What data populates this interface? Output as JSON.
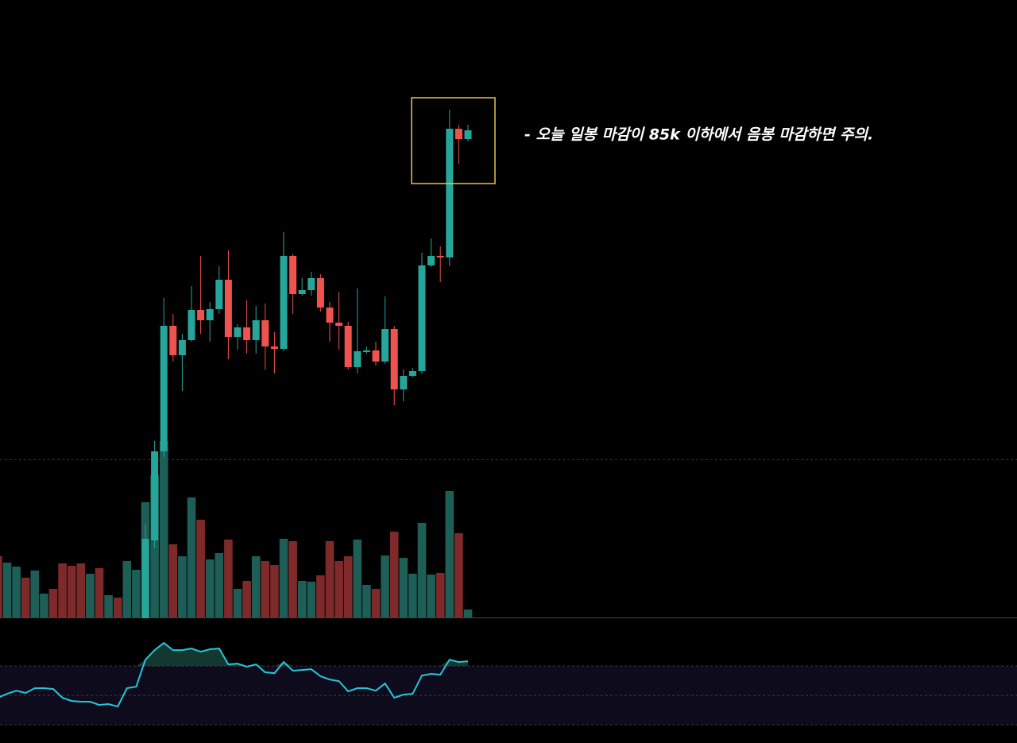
{
  "chart_data": [
    {
      "type": "candlestick",
      "annotation": "- 오늘 일봉 마감이 85k 이하에서 음봉 마감하면 주의.",
      "up_color": "#26a69a",
      "down_color": "#ef5350",
      "ylim": [
        0,
        800
      ],
      "open": [
        22,
        120,
        232,
        390,
        353,
        372,
        410,
        397,
        411,
        448,
        376,
        388,
        372,
        397,
        364,
        361,
        478,
        430,
        435,
        450,
        413,
        394,
        390,
        338,
        358,
        359,
        345,
        386,
        310,
        327,
        333,
        466,
        478,
        476,
        638,
        625
      ],
      "high": [
        140,
        245,
        425,
        405,
        380,
        440,
        478,
        420,
        465,
        485,
        392,
        422,
        415,
        418,
        382,
        508,
        480,
        450,
        458,
        455,
        420,
        433,
        395,
        437,
        364,
        370,
        427,
        390,
        335,
        337,
        482,
        500,
        490,
        662,
        643,
        643
      ],
      "low": [
        22,
        110,
        225,
        345,
        308,
        370,
        380,
        370,
        405,
        348,
        360,
        355,
        355,
        335,
        330,
        358,
        405,
        428,
        428,
        408,
        370,
        360,
        335,
        330,
        355,
        340,
        342,
        290,
        295,
        325,
        330,
        464,
        445,
        465,
        594,
        622
      ],
      "close": [
        122,
        232,
        390,
        353,
        372,
        410,
        397,
        411,
        448,
        376,
        388,
        372,
        397,
        364,
        361,
        478,
        430,
        435,
        450,
        413,
        394,
        390,
        338,
        358,
        359,
        345,
        386,
        310,
        327,
        333,
        466,
        478,
        476,
        638,
        625,
        636
      ]
    },
    {
      "type": "bar",
      "ylim": [
        0,
        250
      ],
      "values": [
        77,
        69,
        64,
        50,
        59,
        30,
        36,
        68,
        65,
        68,
        55,
        62,
        28,
        25,
        71,
        60,
        145,
        179,
        222,
        92,
        77,
        151,
        123,
        73,
        81,
        98,
        36,
        46,
        77,
        71,
        66,
        99,
        96,
        46,
        45,
        53,
        96,
        71,
        77,
        98,
        41,
        36,
        78,
        108,
        75,
        55,
        119,
        54,
        56,
        159,
        106,
        10
      ],
      "colors": [
        "#7f2a2a",
        "#1d5e57",
        "#1d5e57",
        "#7f2a2a",
        "#1d5e57",
        "#1d5e57",
        "#7f2a2a",
        "#7f2a2a",
        "#7f2a2a",
        "#7f2a2a",
        "#1d5e57",
        "#7f2a2a",
        "#1d5e57",
        "#7f2a2a",
        "#1d5e57",
        "#1d5e57",
        "#1d5e57",
        "#1d5e57",
        "#1d5e57",
        "#7f2a2a",
        "#1d5e57",
        "#1d5e57",
        "#7f2a2a",
        "#1d5e57",
        "#1d5e57",
        "#7f2a2a",
        "#1d5e57",
        "#7f2a2a",
        "#1d5e57",
        "#7f2a2a",
        "#7f2a2a",
        "#1d5e57",
        "#7f2a2a",
        "#1d5e57",
        "#1d5e57",
        "#7f2a2a",
        "#7f2a2a",
        "#7f2a2a",
        "#7f2a2a",
        "#1d5e57",
        "#1d5e57",
        "#7f2a2a",
        "#1d5e57",
        "#7f2a2a",
        "#1d5e57",
        "#1d5e57",
        "#1d5e57",
        "#1d5e57",
        "#7f2a2a",
        "#1d5e57",
        "#7f2a2a",
        "#1d5e57"
      ]
    },
    {
      "type": "line",
      "color": "#26c6da",
      "ylim": [
        17.6,
        101.4
      ],
      "levels": [
        30,
        50,
        70
      ],
      "values": [
        48.4,
        51.1,
        53.2,
        51.6,
        54.9,
        54.9,
        54.3,
        48.4,
        46.2,
        45.7,
        45.7,
        43.5,
        44.1,
        42.4,
        54.9,
        55.9,
        74.3,
        80.8,
        85.7,
        80.8,
        80.8,
        81.9,
        79.7,
        81.4,
        81.9,
        71.1,
        71.6,
        69.5,
        71.1,
        65.7,
        65.1,
        72.7,
        66.8,
        67.3,
        67.8,
        63.0,
        60.8,
        59.7,
        52.7,
        54.9,
        54.9,
        53.2,
        58.1,
        48.4,
        50.5,
        51.1,
        63.5,
        64.6,
        64.1,
        74.3,
        72.7,
        73.2
      ]
    }
  ]
}
